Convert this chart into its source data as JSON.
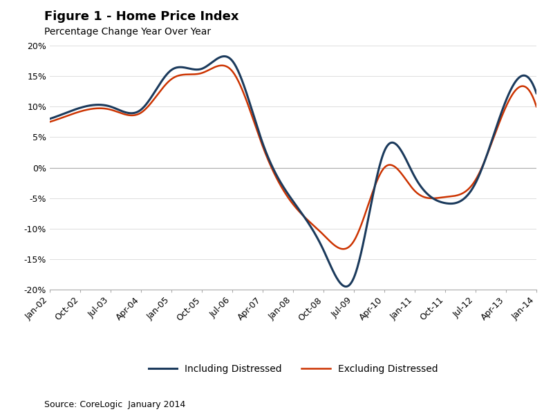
{
  "title": "Figure 1 - Home Price Index",
  "subtitle": "Percentage Change Year Over Year",
  "source": "Source: CoreLogic  January 2014",
  "ylim": [
    -20,
    20
  ],
  "yticks": [
    -20,
    -15,
    -10,
    -5,
    0,
    5,
    10,
    15,
    20
  ],
  "color_including": "#1B3A5C",
  "color_excluding": "#CC3300",
  "legend_labels": [
    "Including Distressed",
    "Excluding Distressed"
  ],
  "background_color": "#FFFFFF",
  "x_labels": [
    "Jan-02",
    "Oct-02",
    "Jul-03",
    "Apr-04",
    "Jan-05",
    "Oct-05",
    "Jul-06",
    "Apr-07",
    "Jan-08",
    "Oct-08",
    "Jul-09",
    "Apr-10",
    "Jan-11",
    "Oct-11",
    "Jul-12",
    "Apr-13",
    "Jan-14"
  ],
  "anchor_months": [
    0,
    9,
    18,
    27,
    36,
    45,
    54,
    63,
    72,
    81,
    90,
    99,
    108,
    117,
    126,
    135,
    144
  ],
  "including_distressed": [
    8.0,
    9.8,
    10.0,
    9.5,
    16.0,
    16.2,
    17.5,
    4.0,
    -5.5,
    -13.5,
    -18.0,
    2.7,
    -1.5,
    -5.8,
    -2.5,
    11.0,
    12.2
  ],
  "excluding_distressed": [
    7.5,
    9.2,
    9.5,
    9.0,
    14.5,
    15.5,
    15.8,
    3.5,
    -6.0,
    -11.0,
    -12.0,
    0.0,
    -3.8,
    -4.8,
    -2.0,
    10.0,
    10.0
  ],
  "title_fontsize": 13,
  "subtitle_fontsize": 10,
  "tick_fontsize": 9,
  "legend_fontsize": 10,
  "source_fontsize": 9
}
